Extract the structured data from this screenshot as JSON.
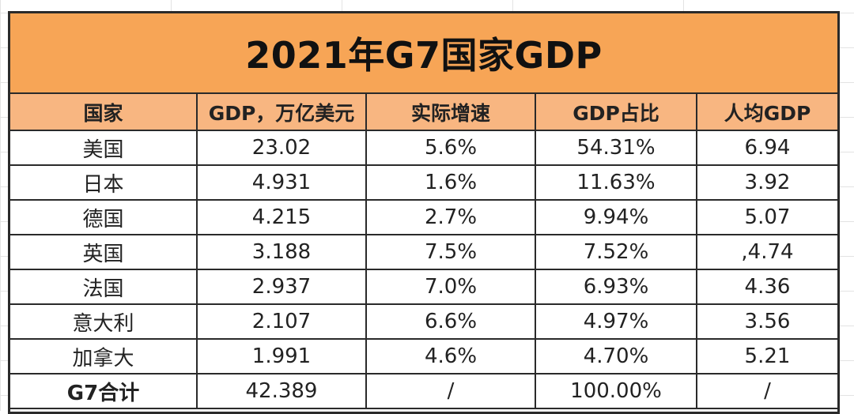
{
  "title": "2021年G7国家GDP",
  "headers": [
    "国家",
    "GDP，万亿美元",
    "实际增速",
    "GDP占比",
    "人均GDP"
  ],
  "rows": [
    {
      "country": "美国",
      "gdp": "23.02",
      "growth": "5.6%",
      "share": "54.31%",
      "per_capita": "6.94"
    },
    {
      "country": "日本",
      "gdp": "4.931",
      "growth": "1.6%",
      "share": "11.63%",
      "per_capita": "3.92"
    },
    {
      "country": "德国",
      "gdp": "4.215",
      "growth": "2.7%",
      "share": "9.94%",
      "per_capita": "5.07"
    },
    {
      "country": "英国",
      "gdp": "3.188",
      "growth": "7.5%",
      "share": "7.52%",
      "per_capita": ",4.74"
    },
    {
      "country": "法国",
      "gdp": "2.937",
      "growth": "7.0%",
      "share": "6.93%",
      "per_capita": "4.36"
    },
    {
      "country": "意大利",
      "gdp": "2.107",
      "growth": "6.6%",
      "share": "4.97%",
      "per_capita": "3.56"
    },
    {
      "country": "加拿大",
      "gdp": "1.991",
      "growth": "4.6%",
      "share": "4.70%",
      "per_capita": "5.21"
    }
  ],
  "total": {
    "country": "G7合计",
    "gdp": "42.389",
    "growth": "/",
    "share": "100.00%",
    "per_capita": "/"
  },
  "colors": {
    "title_bg": "#f7a556",
    "header_bg": "#f8b681",
    "border": "#2a2a2a"
  }
}
